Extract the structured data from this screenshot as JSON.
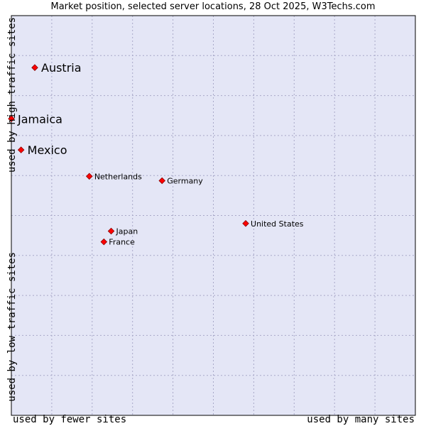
{
  "chart_data": {
    "type": "scatter",
    "title": "Market position, selected server locations, 28 Oct 2025, W3Techs.com",
    "xlabel_low": "used by fewer sites",
    "xlabel_high": "used by many sites",
    "ylabel_high": "used by high traffic sites",
    "ylabel_low": "used by low traffic sites",
    "xlim": [
      0,
      10
    ],
    "ylim": [
      0,
      10
    ],
    "grid": true,
    "points": [
      {
        "label": "Austria",
        "x": 0.58,
        "y": 8.7,
        "highlight": true
      },
      {
        "label": "Jamaica",
        "x": 0.0,
        "y": 7.42,
        "highlight": true
      },
      {
        "label": "Mexico",
        "x": 0.24,
        "y": 6.64,
        "highlight": true
      },
      {
        "label": "Netherlands",
        "x": 1.93,
        "y": 5.98,
        "highlight": false
      },
      {
        "label": "Germany",
        "x": 3.73,
        "y": 5.87,
        "highlight": false
      },
      {
        "label": "United States",
        "x": 5.8,
        "y": 4.8,
        "highlight": false
      },
      {
        "label": "Japan",
        "x": 2.47,
        "y": 4.61,
        "highlight": false
      },
      {
        "label": "France",
        "x": 2.29,
        "y": 4.34,
        "highlight": false
      }
    ]
  },
  "colors": {
    "plot_background": "#e4e6f6",
    "grid": "#a8a8c8",
    "marker_fill": "#ff0000",
    "marker_stroke": "#880000",
    "frame": "#000000"
  }
}
